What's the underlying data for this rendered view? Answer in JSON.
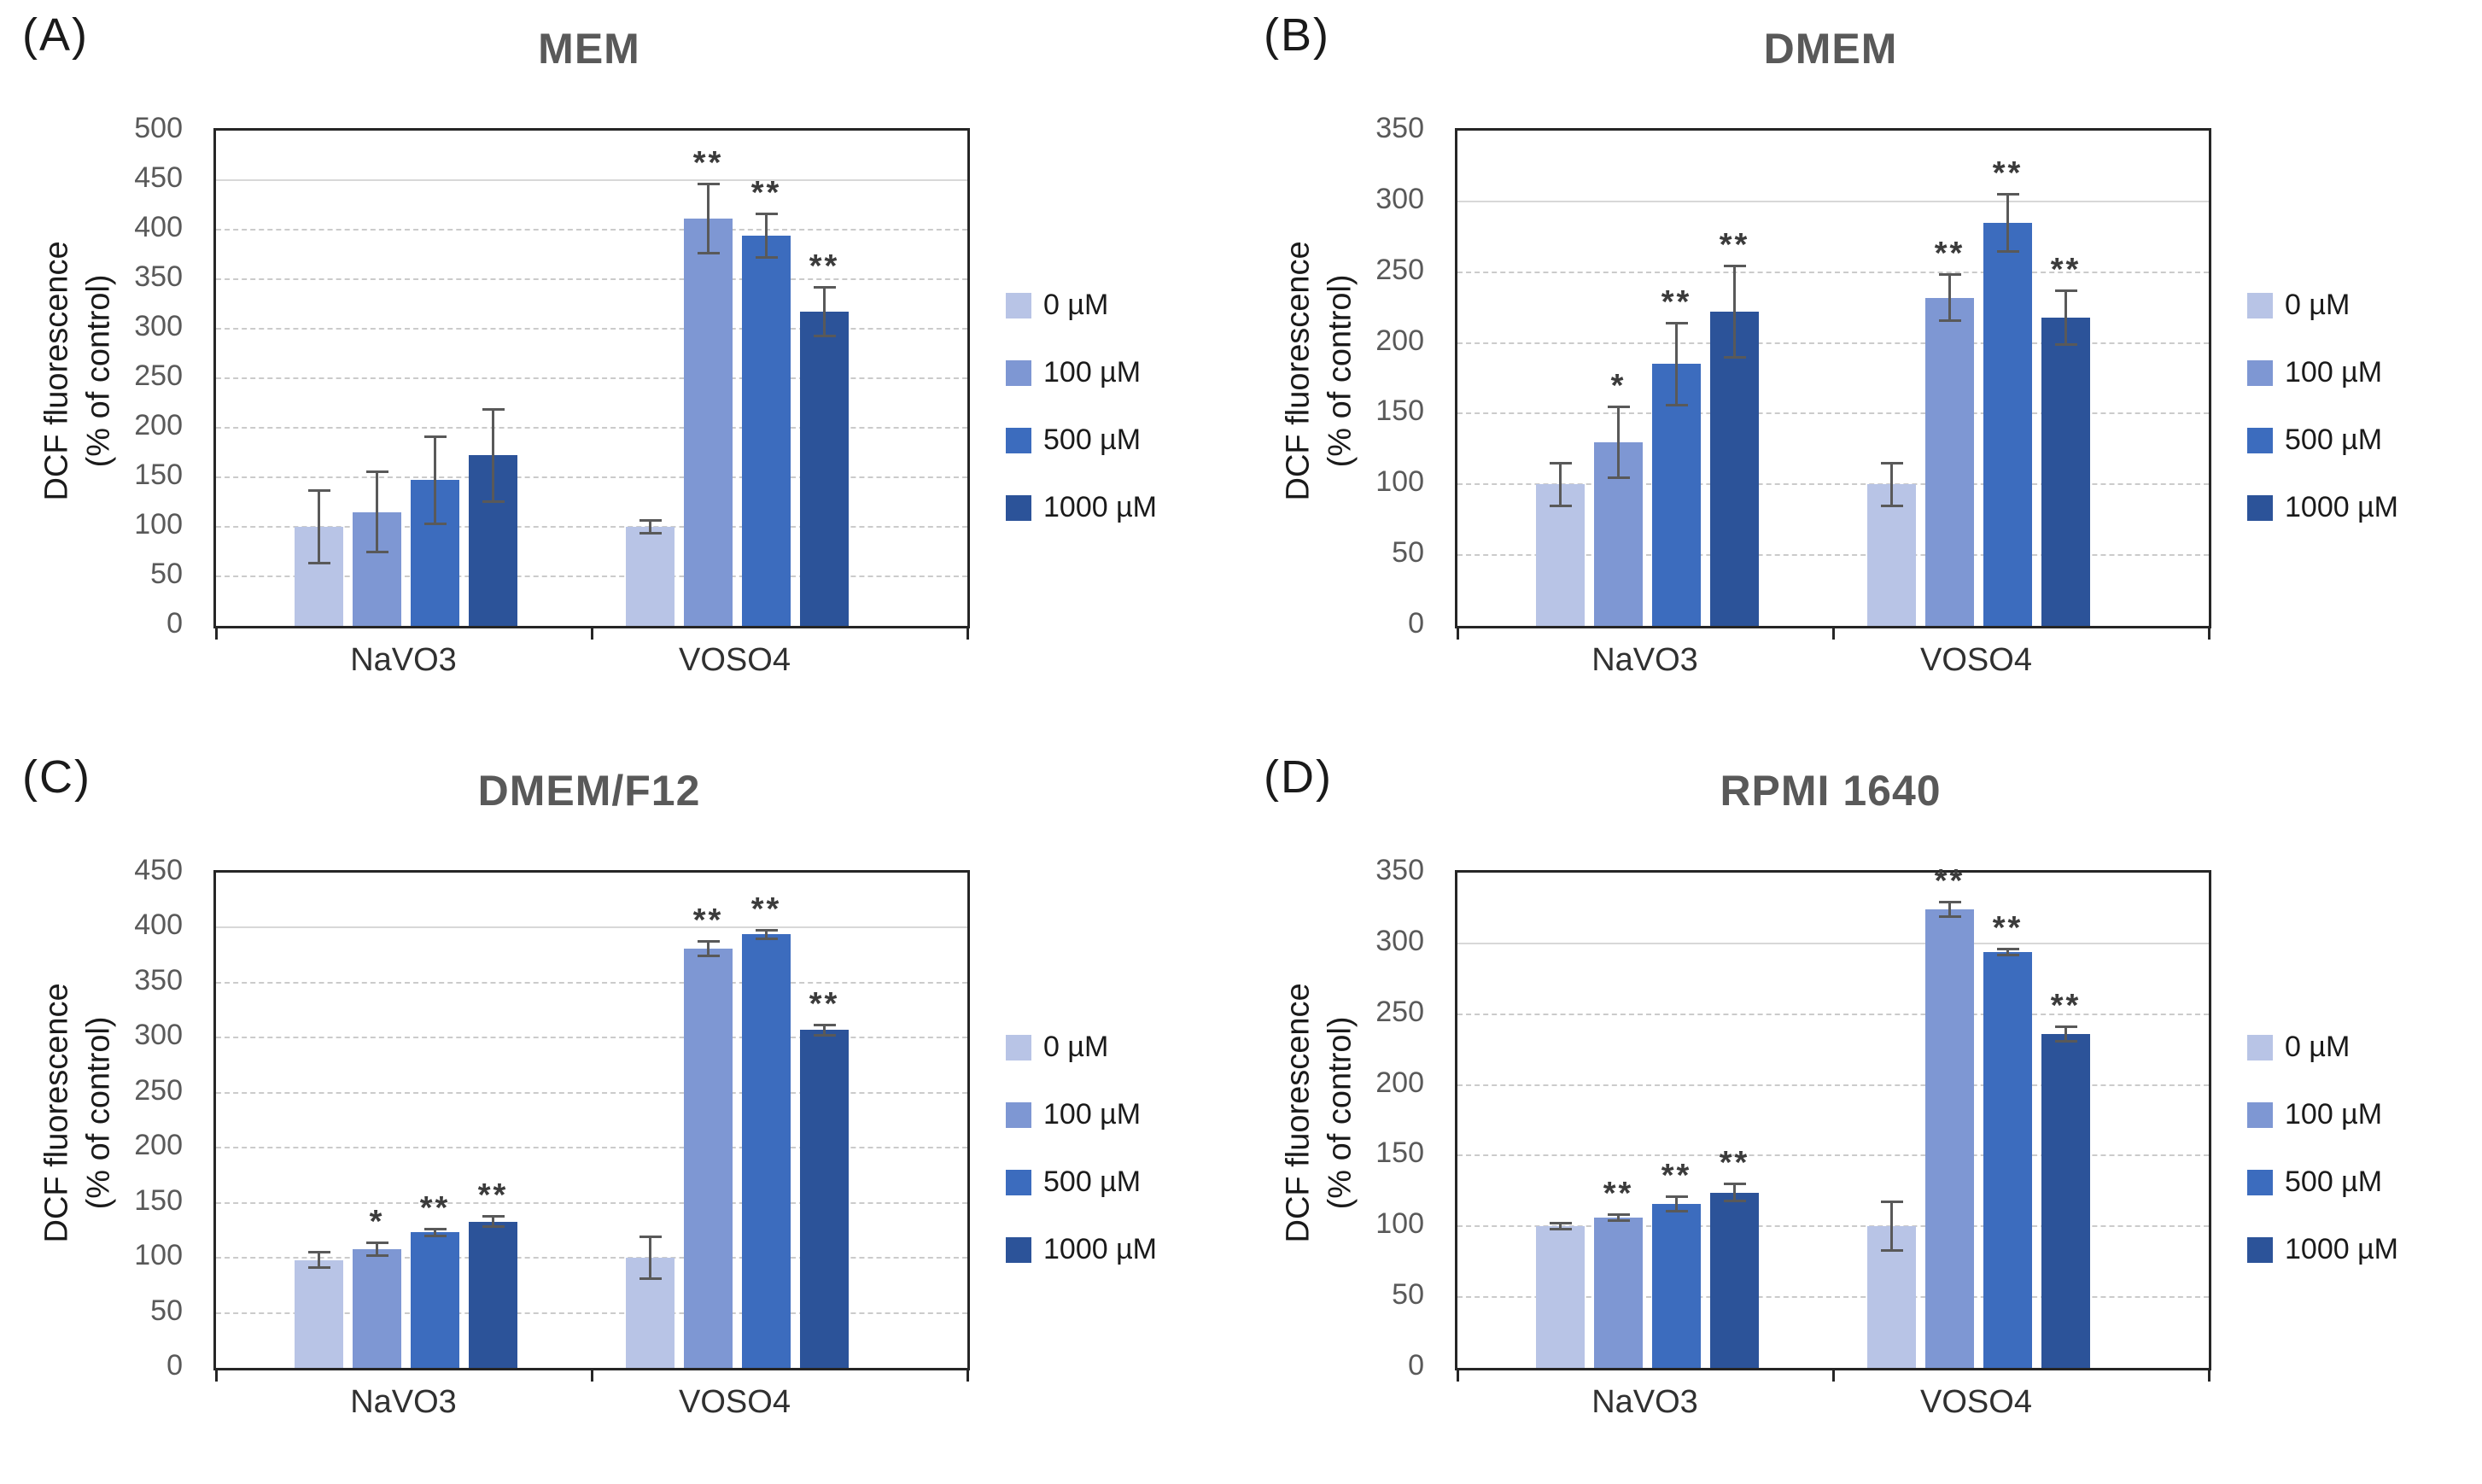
{
  "figure": {
    "y_axis_label_line1": "DCF fluorescence",
    "y_axis_label_line2": "(% of control)"
  },
  "chart_data": [
    {
      "panel_letter": "(A)",
      "title": "MEM",
      "type": "bar",
      "ylabel": "DCF fluorescence (% of control)",
      "ylim": [
        0,
        500
      ],
      "ytick_step": 50,
      "grid": true,
      "legend_position": "right",
      "categories": [
        "NaVO3",
        "VOSO4"
      ],
      "series": [
        {
          "name": "0 µM",
          "color": "#b8c4e6",
          "values": [
            100,
            100
          ],
          "errors": [
            38,
            8
          ],
          "sig": [
            "",
            ""
          ]
        },
        {
          "name": "100 µM",
          "color": "#7e97d3",
          "values": [
            115,
            411
          ],
          "errors": [
            42,
            36
          ],
          "sig": [
            "",
            "**"
          ]
        },
        {
          "name": "500 µM",
          "color": "#3c6cbe",
          "values": [
            147,
            394
          ],
          "errors": [
            45,
            23
          ],
          "sig": [
            "",
            "**"
          ]
        },
        {
          "name": "1000 µM",
          "color": "#2c5399",
          "values": [
            172,
            317
          ],
          "errors": [
            48,
            26
          ],
          "sig": [
            "",
            "**"
          ]
        }
      ]
    },
    {
      "panel_letter": "(B)",
      "title": "DMEM",
      "type": "bar",
      "ylabel": "DCF fluorescence (% of control)",
      "ylim": [
        0,
        350
      ],
      "ytick_step": 50,
      "grid": true,
      "legend_position": "right",
      "categories": [
        "NaVO3",
        "VOSO4"
      ],
      "series": [
        {
          "name": "0 µM",
          "color": "#b8c4e6",
          "values": [
            100,
            100
          ],
          "errors": [
            16,
            16
          ],
          "sig": [
            "",
            ""
          ]
        },
        {
          "name": "100 µM",
          "color": "#7e97d3",
          "values": [
            130,
            232
          ],
          "errors": [
            26,
            17
          ],
          "sig": [
            "*",
            "**"
          ]
        },
        {
          "name": "500 µM",
          "color": "#3c6cbe",
          "values": [
            185,
            285
          ],
          "errors": [
            30,
            21
          ],
          "sig": [
            "**",
            "**"
          ]
        },
        {
          "name": "1000 µM",
          "color": "#2c5399",
          "values": [
            222,
            218
          ],
          "errors": [
            33,
            20
          ],
          "sig": [
            "**",
            "**"
          ]
        }
      ]
    },
    {
      "panel_letter": "(C)",
      "title": "DMEM/F12",
      "type": "bar",
      "ylabel": "DCF fluorescence (% of control)",
      "ylim": [
        0,
        450
      ],
      "ytick_step": 50,
      "grid": true,
      "legend_position": "right",
      "categories": [
        "NaVO3",
        "VOSO4"
      ],
      "series": [
        {
          "name": "0 µM",
          "color": "#b8c4e6",
          "values": [
            98,
            100
          ],
          "errors": [
            8,
            20
          ],
          "sig": [
            "",
            ""
          ]
        },
        {
          "name": "100 µM",
          "color": "#7e97d3",
          "values": [
            108,
            381
          ],
          "errors": [
            7,
            8
          ],
          "sig": [
            "*",
            "**"
          ]
        },
        {
          "name": "500 µM",
          "color": "#3c6cbe",
          "values": [
            123,
            394
          ],
          "errors": [
            4,
            5
          ],
          "sig": [
            "**",
            "**"
          ]
        },
        {
          "name": "1000 µM",
          "color": "#2c5399",
          "values": [
            133,
            307
          ],
          "errors": [
            6,
            6
          ],
          "sig": [
            "**",
            "**"
          ]
        }
      ]
    },
    {
      "panel_letter": "(D)",
      "title": "RPMI 1640",
      "type": "bar",
      "ylabel": "DCF fluorescence (% of control)",
      "ylim": [
        0,
        350
      ],
      "ytick_step": 50,
      "grid": true,
      "legend_position": "right",
      "categories": [
        "NaVO3",
        "VOSO4"
      ],
      "series": [
        {
          "name": "0 µM",
          "color": "#b8c4e6",
          "values": [
            100,
            100
          ],
          "errors": [
            3,
            18
          ],
          "sig": [
            "",
            ""
          ]
        },
        {
          "name": "100 µM",
          "color": "#7e97d3",
          "values": [
            106,
            324
          ],
          "errors": [
            3,
            6
          ],
          "sig": [
            "**",
            "**"
          ]
        },
        {
          "name": "500 µM",
          "color": "#3c6cbe",
          "values": [
            116,
            294
          ],
          "errors": [
            6,
            3
          ],
          "sig": [
            "**",
            "**"
          ]
        },
        {
          "name": "1000 µM",
          "color": "#2c5399",
          "values": [
            124,
            236
          ],
          "errors": [
            7,
            6
          ],
          "sig": [
            "**",
            "**"
          ]
        }
      ]
    }
  ]
}
